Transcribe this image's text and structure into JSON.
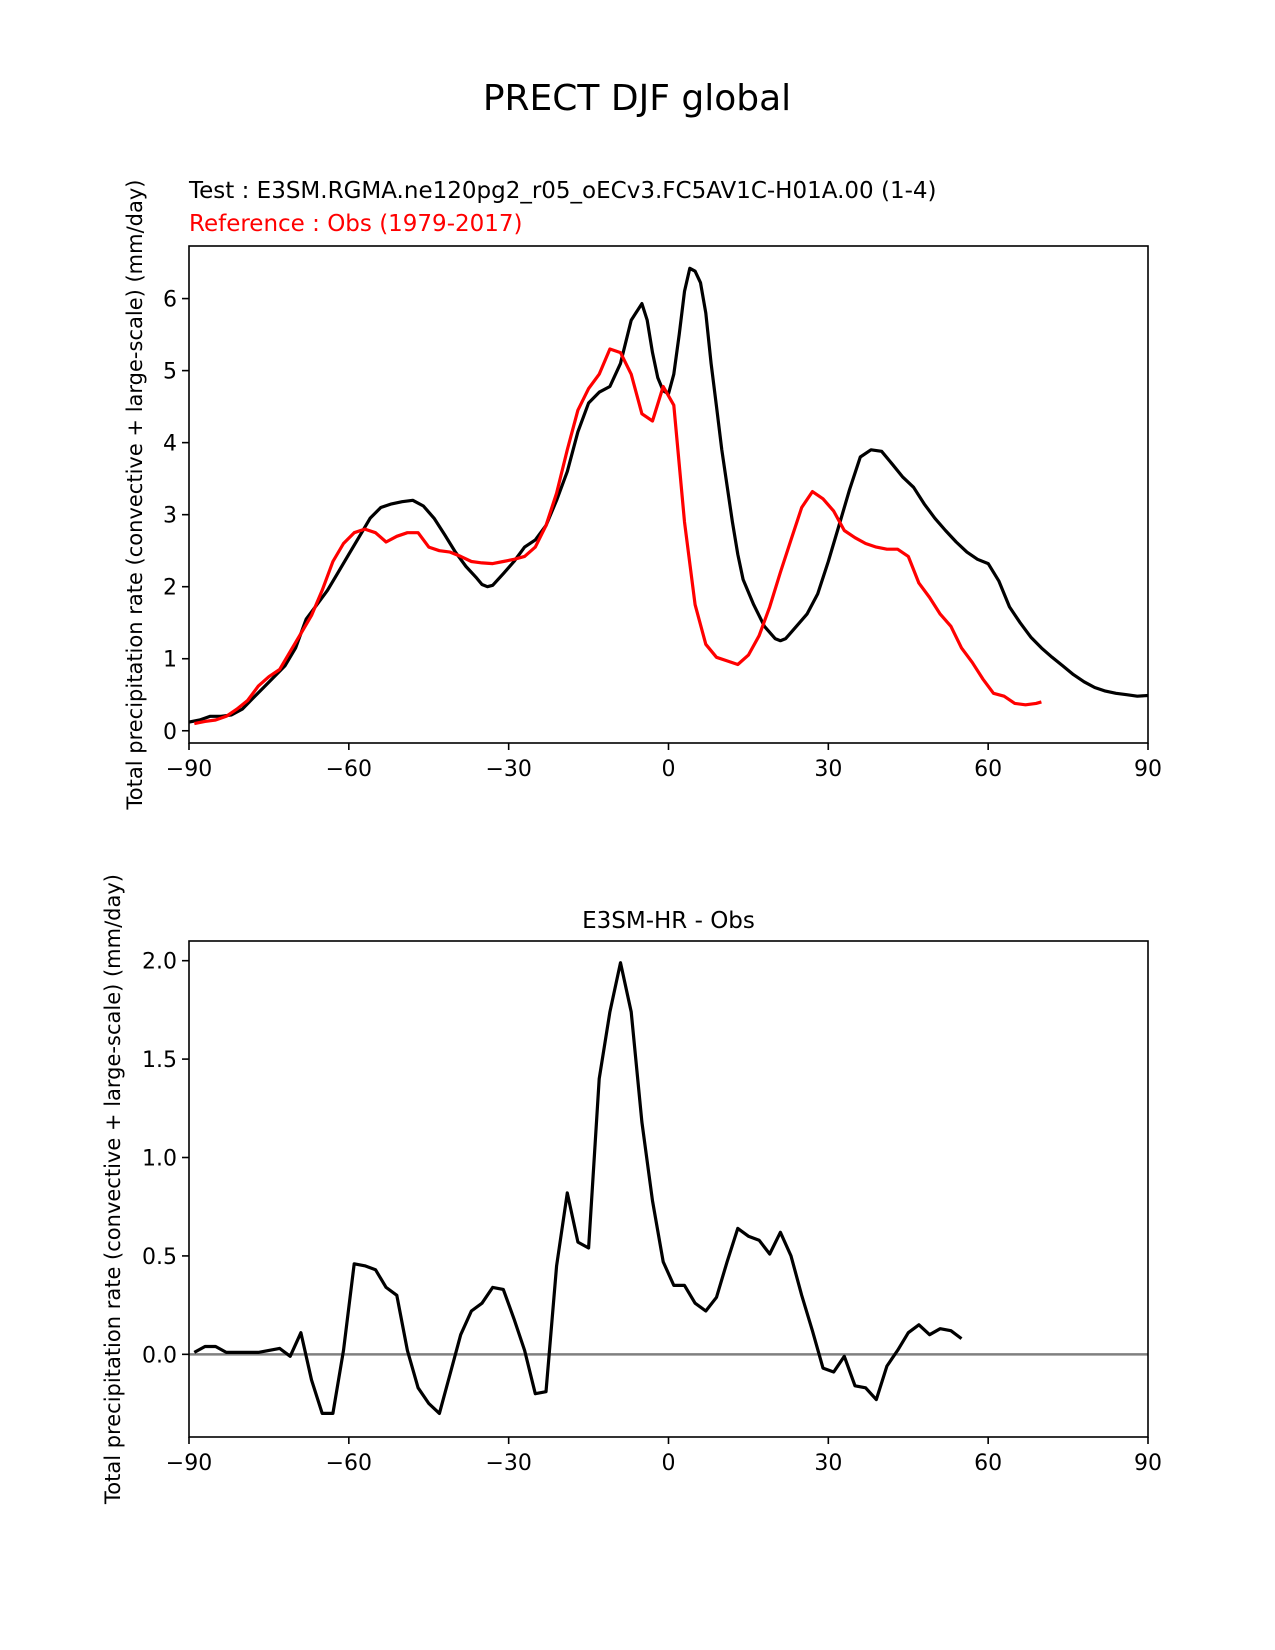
{
  "figure": {
    "title": "PRECT DJF global"
  },
  "chart_data": [
    {
      "type": "line",
      "test_label": "Test : E3SM.RGMA.ne120pg2_r05_oECv3.FC5AV1C-H01A.00 (1-4)",
      "reference_label": "Reference : Obs (1979-2017)",
      "title": "",
      "ylabel": "Total precipitation rate (convective + large-scale) (mm/day)",
      "xlim": [
        -90,
        90
      ],
      "ylim": [
        -0.17,
        6.73
      ],
      "xticks": [
        -90,
        -60,
        -30,
        0,
        30,
        60,
        90
      ],
      "xtick_labels": [
        "−90",
        "−60",
        "−30",
        "0",
        "30",
        "60",
        "90"
      ],
      "yticks": [
        0,
        1,
        2,
        3,
        4,
        5,
        6
      ],
      "ytick_labels": [
        "0",
        "1",
        "2",
        "3",
        "4",
        "5",
        "6"
      ],
      "series": [
        {
          "color": "#000000",
          "points": [
            [
              -90,
              0.12
            ],
            [
              -88,
              0.15
            ],
            [
              -86,
              0.2
            ],
            [
              -84,
              0.2
            ],
            [
              -82,
              0.22
            ],
            [
              -80,
              0.3
            ],
            [
              -78,
              0.45
            ],
            [
              -76,
              0.6
            ],
            [
              -74,
              0.75
            ],
            [
              -72,
              0.9
            ],
            [
              -70,
              1.15
            ],
            [
              -68,
              1.55
            ],
            [
              -66,
              1.75
            ],
            [
              -64,
              1.95
            ],
            [
              -62,
              2.2
            ],
            [
              -60,
              2.45
            ],
            [
              -58,
              2.7
            ],
            [
              -56,
              2.95
            ],
            [
              -54,
              3.1
            ],
            [
              -52,
              3.15
            ],
            [
              -50,
              3.18
            ],
            [
              -48,
              3.2
            ],
            [
              -46,
              3.12
            ],
            [
              -44,
              2.95
            ],
            [
              -42,
              2.72
            ],
            [
              -40,
              2.48
            ],
            [
              -38,
              2.28
            ],
            [
              -36,
              2.12
            ],
            [
              -35,
              2.03
            ],
            [
              -34,
              2.0
            ],
            [
              -33,
              2.02
            ],
            [
              -31,
              2.18
            ],
            [
              -29,
              2.35
            ],
            [
              -27,
              2.55
            ],
            [
              -25,
              2.65
            ],
            [
              -23,
              2.85
            ],
            [
              -21,
              3.2
            ],
            [
              -19,
              3.6
            ],
            [
              -17,
              4.15
            ],
            [
              -15,
              4.55
            ],
            [
              -13,
              4.7
            ],
            [
              -11,
              4.78
            ],
            [
              -9,
              5.1
            ],
            [
              -7,
              5.7
            ],
            [
              -5,
              5.93
            ],
            [
              -4,
              5.7
            ],
            [
              -3,
              5.25
            ],
            [
              -2,
              4.9
            ],
            [
              -1,
              4.72
            ],
            [
              0,
              4.68
            ],
            [
              1,
              4.95
            ],
            [
              2,
              5.5
            ],
            [
              3,
              6.1
            ],
            [
              4,
              6.42
            ],
            [
              5,
              6.38
            ],
            [
              6,
              6.22
            ],
            [
              7,
              5.8
            ],
            [
              8,
              5.1
            ],
            [
              9,
              4.5
            ],
            [
              10,
              3.9
            ],
            [
              11,
              3.4
            ],
            [
              12,
              2.9
            ],
            [
              13,
              2.45
            ],
            [
              14,
              2.1
            ],
            [
              16,
              1.75
            ],
            [
              18,
              1.45
            ],
            [
              20,
              1.28
            ],
            [
              21,
              1.25
            ],
            [
              22,
              1.28
            ],
            [
              24,
              1.45
            ],
            [
              26,
              1.62
            ],
            [
              28,
              1.9
            ],
            [
              30,
              2.35
            ],
            [
              32,
              2.85
            ],
            [
              34,
              3.35
            ],
            [
              36,
              3.8
            ],
            [
              38,
              3.9
            ],
            [
              40,
              3.88
            ],
            [
              42,
              3.7
            ],
            [
              44,
              3.52
            ],
            [
              46,
              3.38
            ],
            [
              48,
              3.15
            ],
            [
              50,
              2.95
            ],
            [
              52,
              2.78
            ],
            [
              54,
              2.62
            ],
            [
              56,
              2.48
            ],
            [
              58,
              2.38
            ],
            [
              60,
              2.32
            ],
            [
              62,
              2.08
            ],
            [
              64,
              1.72
            ],
            [
              66,
              1.5
            ],
            [
              68,
              1.3
            ],
            [
              70,
              1.15
            ],
            [
              72,
              1.02
            ],
            [
              74,
              0.9
            ],
            [
              76,
              0.78
            ],
            [
              78,
              0.68
            ],
            [
              80,
              0.6
            ],
            [
              82,
              0.55
            ],
            [
              84,
              0.52
            ],
            [
              86,
              0.5
            ],
            [
              88,
              0.48
            ],
            [
              90,
              0.49
            ]
          ]
        },
        {
          "color": "#ff0000",
          "points": [
            [
              -89,
              0.1
            ],
            [
              -87,
              0.13
            ],
            [
              -85,
              0.15
            ],
            [
              -83,
              0.2
            ],
            [
              -81,
              0.3
            ],
            [
              -79,
              0.42
            ],
            [
              -77,
              0.62
            ],
            [
              -75,
              0.75
            ],
            [
              -73,
              0.85
            ],
            [
              -71,
              1.1
            ],
            [
              -69,
              1.35
            ],
            [
              -67,
              1.6
            ],
            [
              -65,
              1.95
            ],
            [
              -63,
              2.35
            ],
            [
              -61,
              2.6
            ],
            [
              -59,
              2.75
            ],
            [
              -57,
              2.8
            ],
            [
              -55,
              2.75
            ],
            [
              -53,
              2.62
            ],
            [
              -51,
              2.7
            ],
            [
              -49,
              2.75
            ],
            [
              -47,
              2.75
            ],
            [
              -45,
              2.55
            ],
            [
              -43,
              2.5
            ],
            [
              -41,
              2.48
            ],
            [
              -39,
              2.42
            ],
            [
              -37,
              2.35
            ],
            [
              -35,
              2.33
            ],
            [
              -33,
              2.32
            ],
            [
              -31,
              2.35
            ],
            [
              -29,
              2.38
            ],
            [
              -27,
              2.42
            ],
            [
              -25,
              2.55
            ],
            [
              -23,
              2.85
            ],
            [
              -21,
              3.3
            ],
            [
              -19,
              3.9
            ],
            [
              -17,
              4.45
            ],
            [
              -15,
              4.75
            ],
            [
              -13,
              4.95
            ],
            [
              -11,
              5.3
            ],
            [
              -9,
              5.25
            ],
            [
              -7,
              4.95
            ],
            [
              -5,
              4.4
            ],
            [
              -3,
              4.3
            ],
            [
              -1,
              4.78
            ],
            [
              1,
              4.52
            ],
            [
              3,
              2.9
            ],
            [
              5,
              1.75
            ],
            [
              7,
              1.2
            ],
            [
              9,
              1.02
            ],
            [
              11,
              0.97
            ],
            [
              13,
              0.92
            ],
            [
              15,
              1.05
            ],
            [
              17,
              1.32
            ],
            [
              19,
              1.72
            ],
            [
              21,
              2.2
            ],
            [
              23,
              2.65
            ],
            [
              25,
              3.1
            ],
            [
              27,
              3.32
            ],
            [
              29,
              3.22
            ],
            [
              31,
              3.05
            ],
            [
              33,
              2.78
            ],
            [
              35,
              2.68
            ],
            [
              37,
              2.6
            ],
            [
              39,
              2.55
            ],
            [
              41,
              2.52
            ],
            [
              43,
              2.52
            ],
            [
              45,
              2.42
            ],
            [
              47,
              2.05
            ],
            [
              49,
              1.85
            ],
            [
              51,
              1.62
            ],
            [
              53,
              1.45
            ],
            [
              55,
              1.15
            ],
            [
              57,
              0.95
            ],
            [
              59,
              0.72
            ],
            [
              61,
              0.52
            ],
            [
              63,
              0.48
            ],
            [
              65,
              0.38
            ],
            [
              67,
              0.36
            ],
            [
              69,
              0.38
            ],
            [
              70,
              0.4
            ]
          ]
        }
      ]
    },
    {
      "type": "line",
      "title": "E3SM-HR - Obs",
      "ylabel": "Total precipitation rate (convective + large-scale) (mm/day)",
      "xlim": [
        -90,
        90
      ],
      "ylim": [
        -0.42,
        2.1
      ],
      "xticks": [
        -90,
        -60,
        -30,
        0,
        30,
        60,
        90
      ],
      "xtick_labels": [
        "−90",
        "−60",
        "−30",
        "0",
        "30",
        "60",
        "90"
      ],
      "yticks": [
        0.0,
        0.5,
        1.0,
        1.5,
        2.0
      ],
      "ytick_labels": [
        "0.0",
        "0.5",
        "1.0",
        "1.5",
        "2.0"
      ],
      "zero_line_color": "#808080",
      "series": [
        {
          "color": "#000000",
          "points": [
            [
              -89,
              0.01
            ],
            [
              -87,
              0.04
            ],
            [
              -85,
              0.04
            ],
            [
              -83,
              0.01
            ],
            [
              -81,
              0.01
            ],
            [
              -79,
              0.01
            ],
            [
              -77,
              0.01
            ],
            [
              -75,
              0.02
            ],
            [
              -73,
              0.03
            ],
            [
              -71,
              -0.01
            ],
            [
              -69,
              0.11
            ],
            [
              -67,
              -0.13
            ],
            [
              -65,
              -0.3
            ],
            [
              -63,
              -0.3
            ],
            [
              -61,
              0.02
            ],
            [
              -59,
              0.46
            ],
            [
              -57,
              0.45
            ],
            [
              -55,
              0.43
            ],
            [
              -53,
              0.34
            ],
            [
              -51,
              0.3
            ],
            [
              -49,
              0.02
            ],
            [
              -47,
              -0.17
            ],
            [
              -45,
              -0.25
            ],
            [
              -43,
              -0.3
            ],
            [
              -41,
              -0.1
            ],
            [
              -39,
              0.1
            ],
            [
              -37,
              0.22
            ],
            [
              -35,
              0.26
            ],
            [
              -33,
              0.34
            ],
            [
              -31,
              0.33
            ],
            [
              -29,
              0.18
            ],
            [
              -27,
              0.02
            ],
            [
              -25,
              -0.2
            ],
            [
              -23,
              -0.19
            ],
            [
              -21,
              0.45
            ],
            [
              -19,
              0.82
            ],
            [
              -17,
              0.57
            ],
            [
              -15,
              0.54
            ],
            [
              -13,
              1.4
            ],
            [
              -11,
              1.74
            ],
            [
              -9,
              1.99
            ],
            [
              -7,
              1.74
            ],
            [
              -5,
              1.18
            ],
            [
              -3,
              0.78
            ],
            [
              -1,
              0.47
            ],
            [
              1,
              0.35
            ],
            [
              3,
              0.35
            ],
            [
              5,
              0.26
            ],
            [
              7,
              0.22
            ],
            [
              9,
              0.29
            ],
            [
              11,
              0.47
            ],
            [
              13,
              0.64
            ],
            [
              15,
              0.6
            ],
            [
              17,
              0.58
            ],
            [
              19,
              0.51
            ],
            [
              21,
              0.62
            ],
            [
              23,
              0.5
            ],
            [
              25,
              0.3
            ],
            [
              27,
              0.12
            ],
            [
              29,
              -0.07
            ],
            [
              31,
              -0.09
            ],
            [
              33,
              -0.01
            ],
            [
              35,
              -0.16
            ],
            [
              37,
              -0.17
            ],
            [
              39,
              -0.23
            ],
            [
              41,
              -0.06
            ],
            [
              43,
              0.02
            ],
            [
              45,
              0.11
            ],
            [
              47,
              0.15
            ],
            [
              49,
              0.1
            ],
            [
              51,
              0.13
            ],
            [
              53,
              0.12
            ],
            [
              55,
              0.08
            ]
          ]
        }
      ]
    }
  ]
}
